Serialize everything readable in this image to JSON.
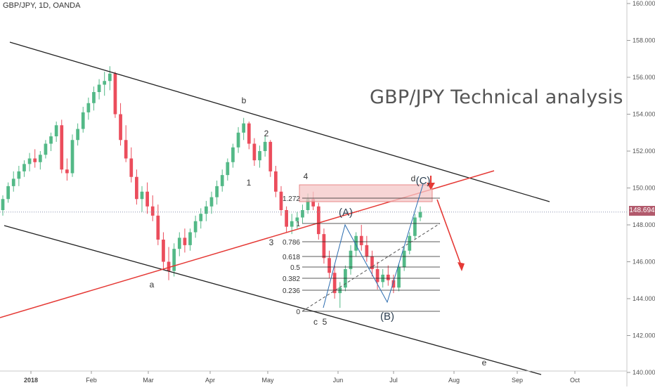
{
  "header": {
    "symbol_label": "GBP/JPY, 1D, OANDA"
  },
  "chart_data": {
    "type": "candlestick",
    "title": "GBP/JPY Technical analysis",
    "symbol": "GBP/JPY, 1D, OANDA",
    "last_price": "148.694",
    "y_range": [
      140,
      160
    ],
    "y_ticks": [
      "160.000",
      "158.000",
      "156.000",
      "154.000",
      "152.000",
      "150.000",
      "148.000",
      "146.000",
      "144.000",
      "142.000",
      "140.000"
    ],
    "x_ticks": [
      "2018",
      "Feb",
      "Mar",
      "Apr",
      "May",
      "Jun",
      "Jul",
      "Aug",
      "Sep",
      "Oct"
    ],
    "colors": {
      "up": "#53b987",
      "down": "#eb4d5c",
      "channel": "#222222",
      "trendline": "#e53935",
      "price_line": "#8a93b0",
      "zone": "#f4c7c7"
    },
    "wave_labels": [
      "a",
      "b",
      "c",
      "d",
      "e",
      "1",
      "2",
      "3",
      "4",
      "5",
      "(A)",
      "(B)",
      "(C)"
    ],
    "fib_levels": [
      "1.272",
      "1",
      "0.786",
      "0.618",
      "0.5",
      "0.382",
      "0.236",
      "0"
    ],
    "candles": [
      [
        148.8,
        149.6,
        148.5,
        149.4
      ],
      [
        149.4,
        150.3,
        149.2,
        150.1
      ],
      [
        150.1,
        150.9,
        149.8,
        150.5
      ],
      [
        150.5,
        151.2,
        150.1,
        150.9
      ],
      [
        150.9,
        151.5,
        150.6,
        151.3
      ],
      [
        151.3,
        151.9,
        150.9,
        151.6
      ],
      [
        151.6,
        152.1,
        151.1,
        151.4
      ],
      [
        151.4,
        152.0,
        151.0,
        151.8
      ],
      [
        151.8,
        152.6,
        151.6,
        152.4
      ],
      [
        152.4,
        153.0,
        152.0,
        152.8
      ],
      [
        152.8,
        153.6,
        152.5,
        153.4
      ],
      [
        153.4,
        153.7,
        150.8,
        151.0
      ],
      [
        151.0,
        151.6,
        150.4,
        150.8
      ],
      [
        150.8,
        152.9,
        150.6,
        152.6
      ],
      [
        152.6,
        153.5,
        152.3,
        153.2
      ],
      [
        153.2,
        154.4,
        153.0,
        154.1
      ],
      [
        154.1,
        154.9,
        153.7,
        154.6
      ],
      [
        154.6,
        155.5,
        154.2,
        155.2
      ],
      [
        155.2,
        155.9,
        154.8,
        155.6
      ],
      [
        155.6,
        156.3,
        155.0,
        155.8
      ],
      [
        155.8,
        156.6,
        155.3,
        156.2
      ],
      [
        156.2,
        156.3,
        153.8,
        154.0
      ],
      [
        154.0,
        154.6,
        152.3,
        152.6
      ],
      [
        152.6,
        153.4,
        151.4,
        151.6
      ],
      [
        151.6,
        152.2,
        150.3,
        150.6
      ],
      [
        150.6,
        151.0,
        149.1,
        149.4
      ],
      [
        149.4,
        150.1,
        148.7,
        149.8
      ],
      [
        149.8,
        150.3,
        148.6,
        149.0
      ],
      [
        149.0,
        149.6,
        148.2,
        148.5
      ],
      [
        148.5,
        149.1,
        146.9,
        147.2
      ],
      [
        147.2,
        147.6,
        145.6,
        146.0
      ],
      [
        146.0,
        146.8,
        145.0,
        145.5
      ],
      [
        145.5,
        147.0,
        145.2,
        146.7
      ],
      [
        146.7,
        147.6,
        146.3,
        147.3
      ],
      [
        147.3,
        147.8,
        146.5,
        146.9
      ],
      [
        146.9,
        147.8,
        146.6,
        147.6
      ],
      [
        147.6,
        148.5,
        147.3,
        148.2
      ],
      [
        148.2,
        148.9,
        147.8,
        148.6
      ],
      [
        148.6,
        149.3,
        148.2,
        149.0
      ],
      [
        149.0,
        149.8,
        148.6,
        149.5
      ],
      [
        149.5,
        150.4,
        149.1,
        150.1
      ],
      [
        150.1,
        151.0,
        149.8,
        150.7
      ],
      [
        150.7,
        151.6,
        150.4,
        151.4
      ],
      [
        151.4,
        152.4,
        151.1,
        152.2
      ],
      [
        152.2,
        153.3,
        151.9,
        153.0
      ],
      [
        153.0,
        153.8,
        152.6,
        153.5
      ],
      [
        153.5,
        153.6,
        152.1,
        152.4
      ],
      [
        152.4,
        152.7,
        151.2,
        151.5
      ],
      [
        151.5,
        152.3,
        151.1,
        152.0
      ],
      [
        152.0,
        152.8,
        151.7,
        152.5
      ],
      [
        152.5,
        152.6,
        150.6,
        150.9
      ],
      [
        150.9,
        151.2,
        149.5,
        149.8
      ],
      [
        149.8,
        150.1,
        148.5,
        148.8
      ],
      [
        148.8,
        149.0,
        147.6,
        147.9
      ],
      [
        147.9,
        148.6,
        147.5,
        148.2
      ],
      [
        148.2,
        148.7,
        147.8,
        148.4
      ],
      [
        148.4,
        149.1,
        148.1,
        148.8
      ],
      [
        148.8,
        149.7,
        148.6,
        149.4
      ],
      [
        149.4,
        149.8,
        148.8,
        149.0
      ],
      [
        149.0,
        149.2,
        147.2,
        147.5
      ],
      [
        147.5,
        147.8,
        145.9,
        146.2
      ],
      [
        146.2,
        146.6,
        145.1,
        145.4
      ],
      [
        145.4,
        145.8,
        144.0,
        144.3
      ],
      [
        144.3,
        144.9,
        143.5,
        144.6
      ],
      [
        144.6,
        145.8,
        144.4,
        145.6
      ],
      [
        145.6,
        146.9,
        145.3,
        146.6
      ],
      [
        146.6,
        147.6,
        146.3,
        147.4
      ],
      [
        147.4,
        148.0,
        146.6,
        146.9
      ],
      [
        146.9,
        147.4,
        146.0,
        146.3
      ],
      [
        146.3,
        146.6,
        145.2,
        145.6
      ],
      [
        145.6,
        146.0,
        144.5,
        144.9
      ],
      [
        144.9,
        145.6,
        144.6,
        145.3
      ],
      [
        145.3,
        145.8,
        144.7,
        145.0
      ],
      [
        145.0,
        145.3,
        144.3,
        144.6
      ],
      [
        144.6,
        145.9,
        144.4,
        145.7
      ],
      [
        145.7,
        146.8,
        145.5,
        146.6
      ],
      [
        146.6,
        147.6,
        146.4,
        147.4
      ],
      [
        147.4,
        148.6,
        147.2,
        148.4
      ],
      [
        148.4,
        149.0,
        148.2,
        148.7
      ]
    ]
  }
}
